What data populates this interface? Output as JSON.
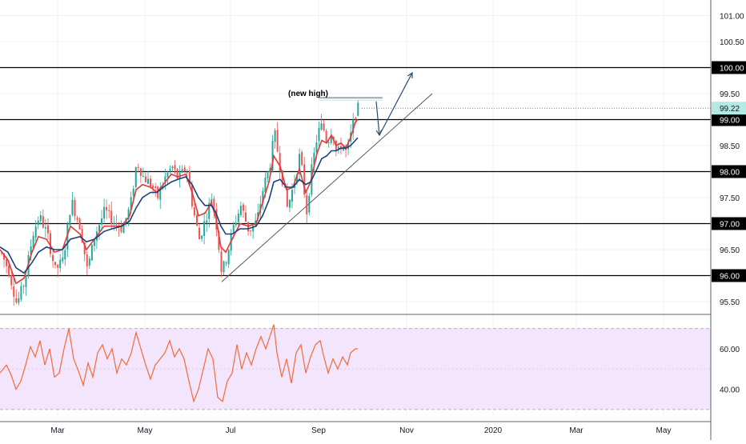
{
  "chart_data": [
    {
      "type": "candlestick",
      "title": "",
      "x_ticks": [
        "Mar",
        "May",
        "Jul",
        "Sep",
        "Nov",
        "2020",
        "Mar",
        "May"
      ],
      "y_ticks": [
        "101.00",
        "100.50",
        "100.00",
        "99.50",
        "99.22",
        "99.00",
        "98.50",
        "98.00",
        "97.50",
        "97.00",
        "96.50",
        "96.00",
        "95.50"
      ],
      "y_tick_values": [
        101.0,
        100.5,
        100.0,
        99.5,
        99.0,
        98.5,
        98.0,
        97.5,
        97.0,
        96.5,
        96.0,
        95.5
      ],
      "ylim": [
        95.3,
        101.3
      ],
      "last_price": 99.22,
      "last_price_label": "99.22",
      "horizontal_levels": [
        {
          "value": 100.0,
          "label": "100.00"
        },
        {
          "value": 99.0,
          "label": "99.00"
        },
        {
          "value": 98.0,
          "label": "98.00"
        },
        {
          "value": 97.0,
          "label": "97.00"
        },
        {
          "value": 96.0,
          "label": "96.00"
        }
      ],
      "annotation": "(new high)",
      "colors": {
        "up": "#26a69a",
        "down": "#ef5350",
        "ma_fast": "#e53935",
        "ma_slow": "#1e3f7a",
        "level": "#000000",
        "trend": "#555555",
        "last_price_bg": "#b2ebe4"
      },
      "close_path": [
        [
          0,
          96.45
        ],
        [
          10,
          96.1
        ],
        [
          20,
          95.45
        ],
        [
          30,
          95.9
        ],
        [
          40,
          96.8
        ],
        [
          48,
          97.15
        ],
        [
          58,
          96.8
        ],
        [
          68,
          96.1
        ],
        [
          78,
          96.3
        ],
        [
          88,
          97.45
        ],
        [
          100,
          96.9
        ],
        [
          108,
          96.1
        ],
        [
          118,
          96.8
        ],
        [
          130,
          97.25
        ],
        [
          140,
          97.05
        ],
        [
          152,
          96.9
        ],
        [
          162,
          97.35
        ],
        [
          170,
          98.2
        ],
        [
          178,
          97.9
        ],
        [
          188,
          97.75
        ],
        [
          196,
          97.5
        ],
        [
          204,
          97.85
        ],
        [
          214,
          98.1
        ],
        [
          222,
          97.85
        ],
        [
          232,
          98.1
        ],
        [
          240,
          97.3
        ],
        [
          248,
          96.7
        ],
        [
          256,
          97.1
        ],
        [
          264,
          97.55
        ],
        [
          270,
          96.9
        ],
        [
          276,
          96.05
        ],
        [
          282,
          96.35
        ],
        [
          290,
          96.9
        ],
        [
          300,
          97.35
        ],
        [
          310,
          96.85
        ],
        [
          320,
          97.05
        ],
        [
          328,
          97.7
        ],
        [
          336,
          98.1
        ],
        [
          342,
          98.75
        ],
        [
          350,
          98.0
        ],
        [
          358,
          97.3
        ],
        [
          366,
          97.75
        ],
        [
          374,
          98.35
        ],
        [
          382,
          97.2
        ],
        [
          388,
          98.0
        ],
        [
          396,
          98.75
        ],
        [
          402,
          98.9
        ],
        [
          408,
          98.55
        ],
        [
          414,
          98.85
        ],
        [
          420,
          98.3
        ],
        [
          426,
          98.55
        ],
        [
          432,
          98.35
        ],
        [
          438,
          98.75
        ],
        [
          444,
          99.2
        ],
        [
          447,
          99.22
        ]
      ],
      "ma_fast": [
        [
          0,
          96.5
        ],
        [
          10,
          96.3
        ],
        [
          20,
          95.85
        ],
        [
          30,
          95.95
        ],
        [
          40,
          96.45
        ],
        [
          48,
          96.75
        ],
        [
          58,
          96.7
        ],
        [
          68,
          96.45
        ],
        [
          78,
          96.5
        ],
        [
          88,
          96.95
        ],
        [
          100,
          96.8
        ],
        [
          108,
          96.5
        ],
        [
          118,
          96.7
        ],
        [
          130,
          96.95
        ],
        [
          140,
          96.95
        ],
        [
          152,
          96.95
        ],
        [
          162,
          97.15
        ],
        [
          170,
          97.65
        ],
        [
          178,
          97.75
        ],
        [
          188,
          97.7
        ],
        [
          196,
          97.6
        ],
        [
          204,
          97.75
        ],
        [
          214,
          97.95
        ],
        [
          222,
          97.9
        ],
        [
          232,
          97.95
        ],
        [
          240,
          97.6
        ],
        [
          248,
          97.15
        ],
        [
          256,
          97.2
        ],
        [
          264,
          97.4
        ],
        [
          270,
          97.1
        ],
        [
          276,
          96.55
        ],
        [
          282,
          96.45
        ],
        [
          290,
          96.7
        ],
        [
          300,
          97.0
        ],
        [
          310,
          96.95
        ],
        [
          320,
          97.0
        ],
        [
          328,
          97.4
        ],
        [
          336,
          97.8
        ],
        [
          342,
          98.3
        ],
        [
          350,
          98.1
        ],
        [
          358,
          97.65
        ],
        [
          366,
          97.7
        ],
        [
          374,
          98.05
        ],
        [
          382,
          97.6
        ],
        [
          388,
          97.8
        ],
        [
          396,
          98.35
        ],
        [
          402,
          98.6
        ],
        [
          408,
          98.55
        ],
        [
          414,
          98.7
        ],
        [
          420,
          98.5
        ],
        [
          426,
          98.55
        ],
        [
          432,
          98.45
        ],
        [
          438,
          98.65
        ],
        [
          444,
          98.95
        ],
        [
          447,
          99.0
        ]
      ],
      "ma_slow": [
        [
          0,
          96.55
        ],
        [
          10,
          96.45
        ],
        [
          20,
          96.15
        ],
        [
          30,
          96.05
        ],
        [
          40,
          96.25
        ],
        [
          48,
          96.45
        ],
        [
          58,
          96.55
        ],
        [
          68,
          96.5
        ],
        [
          78,
          96.5
        ],
        [
          88,
          96.7
        ],
        [
          100,
          96.75
        ],
        [
          108,
          96.65
        ],
        [
          118,
          96.7
        ],
        [
          130,
          96.85
        ],
        [
          140,
          96.9
        ],
        [
          152,
          96.95
        ],
        [
          162,
          97.05
        ],
        [
          170,
          97.3
        ],
        [
          178,
          97.5
        ],
        [
          188,
          97.6
        ],
        [
          196,
          97.6
        ],
        [
          204,
          97.7
        ],
        [
          214,
          97.8
        ],
        [
          222,
          97.85
        ],
        [
          232,
          97.9
        ],
        [
          240,
          97.75
        ],
        [
          248,
          97.5
        ],
        [
          256,
          97.35
        ],
        [
          264,
          97.35
        ],
        [
          270,
          97.2
        ],
        [
          276,
          96.95
        ],
        [
          282,
          96.8
        ],
        [
          290,
          96.8
        ],
        [
          300,
          96.9
        ],
        [
          310,
          96.9
        ],
        [
          320,
          96.95
        ],
        [
          328,
          97.15
        ],
        [
          336,
          97.45
        ],
        [
          342,
          97.8
        ],
        [
          350,
          97.85
        ],
        [
          358,
          97.7
        ],
        [
          366,
          97.7
        ],
        [
          374,
          97.85
        ],
        [
          382,
          97.75
        ],
        [
          388,
          97.8
        ],
        [
          396,
          98.05
        ],
        [
          402,
          98.25
        ],
        [
          408,
          98.3
        ],
        [
          414,
          98.4
        ],
        [
          420,
          98.4
        ],
        [
          426,
          98.45
        ],
        [
          432,
          98.45
        ],
        [
          438,
          98.5
        ],
        [
          444,
          98.6
        ],
        [
          447,
          98.65
        ]
      ],
      "trendline": [
        [
          96.2,
          95.88
        ],
        [
          540,
          99.5
        ]
      ],
      "new_high_level": {
        "value": 99.42,
        "x_start": 398,
        "x_end": 478
      },
      "projection_arrows": [
        [
          [
            470,
            99.35
          ],
          [
            474,
            98.7
          ]
        ],
        [
          [
            474,
            98.7
          ],
          [
            515,
            99.9
          ]
        ]
      ]
    },
    {
      "type": "line",
      "title": "",
      "y_ticks": [
        "60.00",
        "40.00"
      ],
      "y_tick_values": [
        60,
        40
      ],
      "ylim": [
        26,
        75
      ],
      "band": [
        30,
        70
      ],
      "band_color": "#f3e5fb",
      "line_color": "#f26b3a",
      "rsi_path": [
        [
          0,
          48
        ],
        [
          8,
          52
        ],
        [
          14,
          47
        ],
        [
          20,
          40
        ],
        [
          26,
          44
        ],
        [
          32,
          52
        ],
        [
          38,
          61
        ],
        [
          44,
          56
        ],
        [
          50,
          64
        ],
        [
          56,
          52
        ],
        [
          62,
          60
        ],
        [
          68,
          46
        ],
        [
          74,
          48
        ],
        [
          80,
          60
        ],
        [
          86,
          70
        ],
        [
          92,
          55
        ],
        [
          98,
          49
        ],
        [
          104,
          42
        ],
        [
          110,
          53
        ],
        [
          116,
          46
        ],
        [
          122,
          58
        ],
        [
          128,
          62
        ],
        [
          134,
          55
        ],
        [
          140,
          60
        ],
        [
          146,
          48
        ],
        [
          152,
          55
        ],
        [
          158,
          52
        ],
        [
          164,
          58
        ],
        [
          170,
          68
        ],
        [
          176,
          60
        ],
        [
          182,
          52
        ],
        [
          188,
          45
        ],
        [
          194,
          52
        ],
        [
          200,
          55
        ],
        [
          206,
          58
        ],
        [
          212,
          64
        ],
        [
          218,
          56
        ],
        [
          224,
          60
        ],
        [
          230,
          55
        ],
        [
          236,
          44
        ],
        [
          242,
          34
        ],
        [
          248,
          40
        ],
        [
          254,
          50
        ],
        [
          260,
          60
        ],
        [
          266,
          55
        ],
        [
          272,
          36
        ],
        [
          278,
          34
        ],
        [
          284,
          44
        ],
        [
          290,
          48
        ],
        [
          296,
          62
        ],
        [
          302,
          50
        ],
        [
          308,
          58
        ],
        [
          314,
          52
        ],
        [
          320,
          60
        ],
        [
          326,
          66
        ],
        [
          332,
          60
        ],
        [
          338,
          67
        ],
        [
          342,
          72
        ],
        [
          346,
          58
        ],
        [
          352,
          46
        ],
        [
          358,
          55
        ],
        [
          364,
          43
        ],
        [
          370,
          58
        ],
        [
          376,
          62
        ],
        [
          382,
          48
        ],
        [
          388,
          56
        ],
        [
          394,
          62
        ],
        [
          400,
          64
        ],
        [
          404,
          57
        ],
        [
          410,
          48
        ],
        [
          416,
          55
        ],
        [
          422,
          50
        ],
        [
          428,
          56
        ],
        [
          434,
          52
        ],
        [
          438,
          58
        ],
        [
          444,
          60
        ],
        [
          447,
          60
        ]
      ]
    }
  ]
}
